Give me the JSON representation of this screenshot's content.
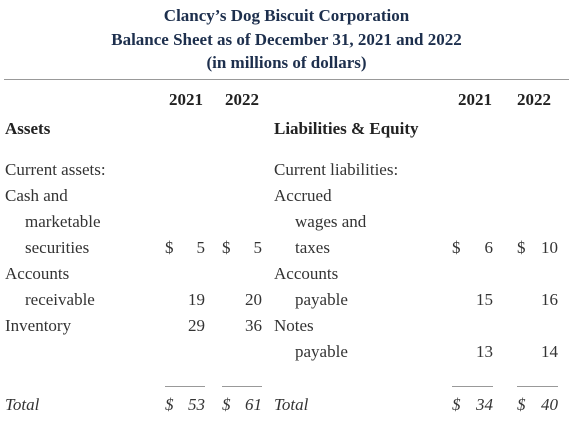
{
  "header": {
    "title": "Clancy’s Dog Biscuit Corporation",
    "subtitle": "Balance Sheet as of December 31, 2021 and 2022",
    "units": "(in millions of dollars)"
  },
  "years": [
    "2021",
    "2022"
  ],
  "assets": {
    "heading": "Assets",
    "rows": [
      {
        "label": "Current assets:",
        "values": null
      },
      {
        "label": "Cash and",
        "values": null
      },
      {
        "label": "marketable",
        "values": null
      },
      {
        "label": "securities",
        "values": [
          {
            "symbol": "$",
            "value": 5
          },
          {
            "symbol": "$",
            "value": 5
          }
        ]
      },
      {
        "label": "Accounts",
        "values": null
      },
      {
        "label": "receivable",
        "values": [
          {
            "value": 19
          },
          {
            "value": 20
          }
        ]
      },
      {
        "label": "Inventory",
        "values": [
          {
            "value": 29
          },
          {
            "value": 36
          }
        ]
      }
    ],
    "total": {
      "label": "Total",
      "values": [
        {
          "symbol": "$",
          "value": 53
        },
        {
          "symbol": "$",
          "value": 61
        }
      ]
    }
  },
  "liabilities": {
    "heading": "Liabilities & Equity",
    "rows": [
      {
        "label": "Current liabilities:",
        "values": null
      },
      {
        "label": "Accrued",
        "values": null
      },
      {
        "label": "wages and",
        "values": null
      },
      {
        "label": "taxes",
        "values": [
          {
            "symbol": "$",
            "value": 6
          },
          {
            "symbol": "$",
            "value": 10
          }
        ]
      },
      {
        "label": "Accounts",
        "values": null
      },
      {
        "label": "payable",
        "values": [
          {
            "value": 15
          },
          {
            "value": 16
          }
        ]
      },
      {
        "label": "Notes",
        "values": null
      },
      {
        "label": "payable",
        "values": [
          {
            "value": 13
          },
          {
            "value": 14
          }
        ]
      }
    ],
    "total": {
      "label": "Total",
      "values": [
        {
          "symbol": "$",
          "value": 34
        },
        {
          "symbol": "$",
          "value": 40
        }
      ]
    }
  }
}
